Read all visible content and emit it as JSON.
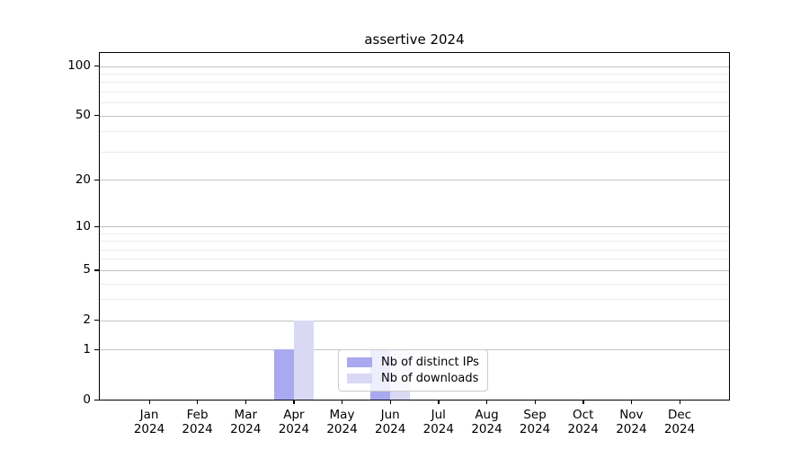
{
  "chart_data": {
    "type": "bar",
    "title": "assertive 2024",
    "categories": [
      "Jan",
      "Feb",
      "Mar",
      "Apr",
      "May",
      "Jun",
      "Jul",
      "Aug",
      "Sep",
      "Oct",
      "Nov",
      "Dec"
    ],
    "year_label": "2024",
    "series": [
      {
        "name": "Nb of distinct IPs",
        "color": "#a9a9ef",
        "values": [
          0,
          0,
          0,
          1,
          0,
          1,
          0,
          0,
          0,
          0,
          0,
          0
        ]
      },
      {
        "name": "Nb of downloads",
        "color": "#d9d9f6",
        "values": [
          0,
          0,
          0,
          2,
          0,
          1,
          0,
          0,
          0,
          0,
          0,
          0
        ]
      }
    ],
    "yticks": [
      0,
      1,
      2,
      5,
      10,
      20,
      50,
      100
    ],
    "minor_yticks": [
      3,
      4,
      6,
      7,
      8,
      9,
      30,
      40,
      60,
      70,
      80,
      90
    ],
    "scale": "log1p",
    "ylim": [
      0,
      120
    ],
    "grid": "both",
    "legend_position": "lower center",
    "colors": {
      "grid_major": "#c2c2c2",
      "grid_minor": "#ebebeb",
      "axis": "#000000",
      "text": "#000000"
    }
  }
}
